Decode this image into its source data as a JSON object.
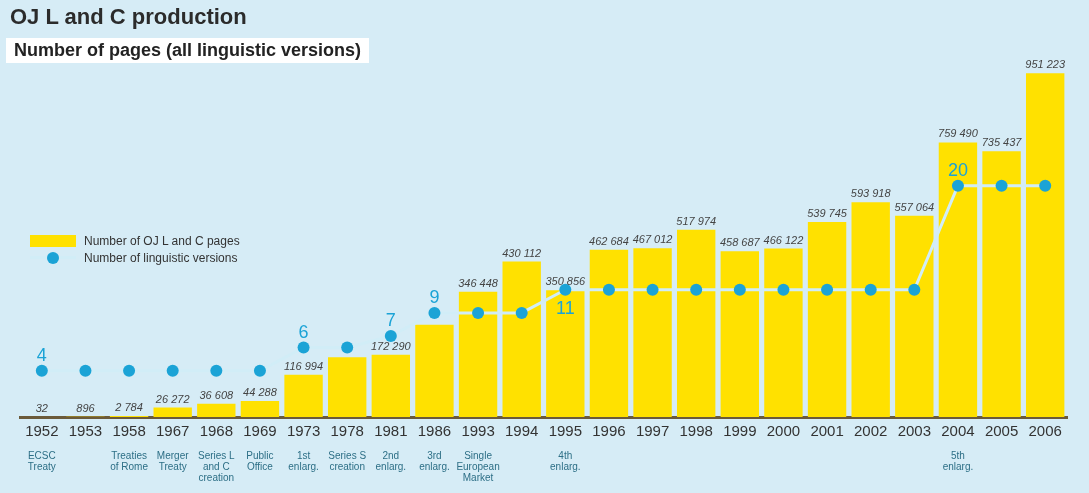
{
  "chart_data": {
    "type": "bar",
    "title": "OJ L and C production",
    "subtitle": "Number of pages (all linguistic versions)",
    "categories": [
      "1952\nECSC Treaty",
      "1953",
      "1958\nTreaties of Rome",
      "1967\nMerger Treaty",
      "1968\nSeries L and C creation",
      "1969\nPublic Office",
      "1973\n1st enlarg.",
      "1978\nSeries S creation",
      "1981\n2nd enlarg.",
      "1986\n3rd enlarg.",
      "1993\nSingle European Market",
      "1994",
      "1995\n4th enlarg.",
      "1996",
      "1997",
      "1998",
      "1999",
      "2000",
      "2001",
      "2002",
      "2003",
      "2004\n5th enlarg.",
      "2005",
      "2006"
    ],
    "series": [
      {
        "name": "Number of OJ L and C pages",
        "color": "#ffe100",
        "values": [
          32,
          896,
          2784,
          26272,
          36608,
          44288,
          116994,
          165000,
          172290,
          255000,
          346448,
          430112,
          350856,
          462684,
          467012,
          517974,
          458687,
          466122,
          539745,
          593918,
          557064,
          759490,
          735437,
          951223
        ],
        "value_labels": [
          "32",
          "896",
          "2 784",
          "26 272",
          "36 608",
          "44 288",
          "116 994",
          null,
          "172 290",
          null,
          "346 448",
          "430 112",
          "350 856",
          "462 684",
          "467 012",
          "517 974",
          "458 687",
          "466 122",
          "539 745",
          "593 918",
          "557 064",
          "759 490",
          "735 437",
          "951 223"
        ]
      },
      {
        "type": "line",
        "axis": "y2",
        "name": "Number of linguistic versions",
        "color": "#1ba3d6",
        "values": [
          4,
          4,
          4,
          4,
          4,
          4,
          6,
          6,
          7,
          9,
          9,
          9,
          11,
          11,
          11,
          11,
          11,
          11,
          11,
          11,
          11,
          20,
          20,
          20
        ],
        "value_labels": [
          "4",
          null,
          null,
          null,
          null,
          null,
          "6",
          null,
          "7",
          "9",
          null,
          null,
          "11",
          null,
          null,
          null,
          null,
          null,
          null,
          null,
          null,
          "20",
          null,
          null
        ]
      }
    ],
    "ylim": [
      0,
      960000
    ],
    "y2lim": [
      0,
      30
    ],
    "tick_labels": "x",
    "grid": false,
    "legend": "left",
    "marker": "circle"
  }
}
